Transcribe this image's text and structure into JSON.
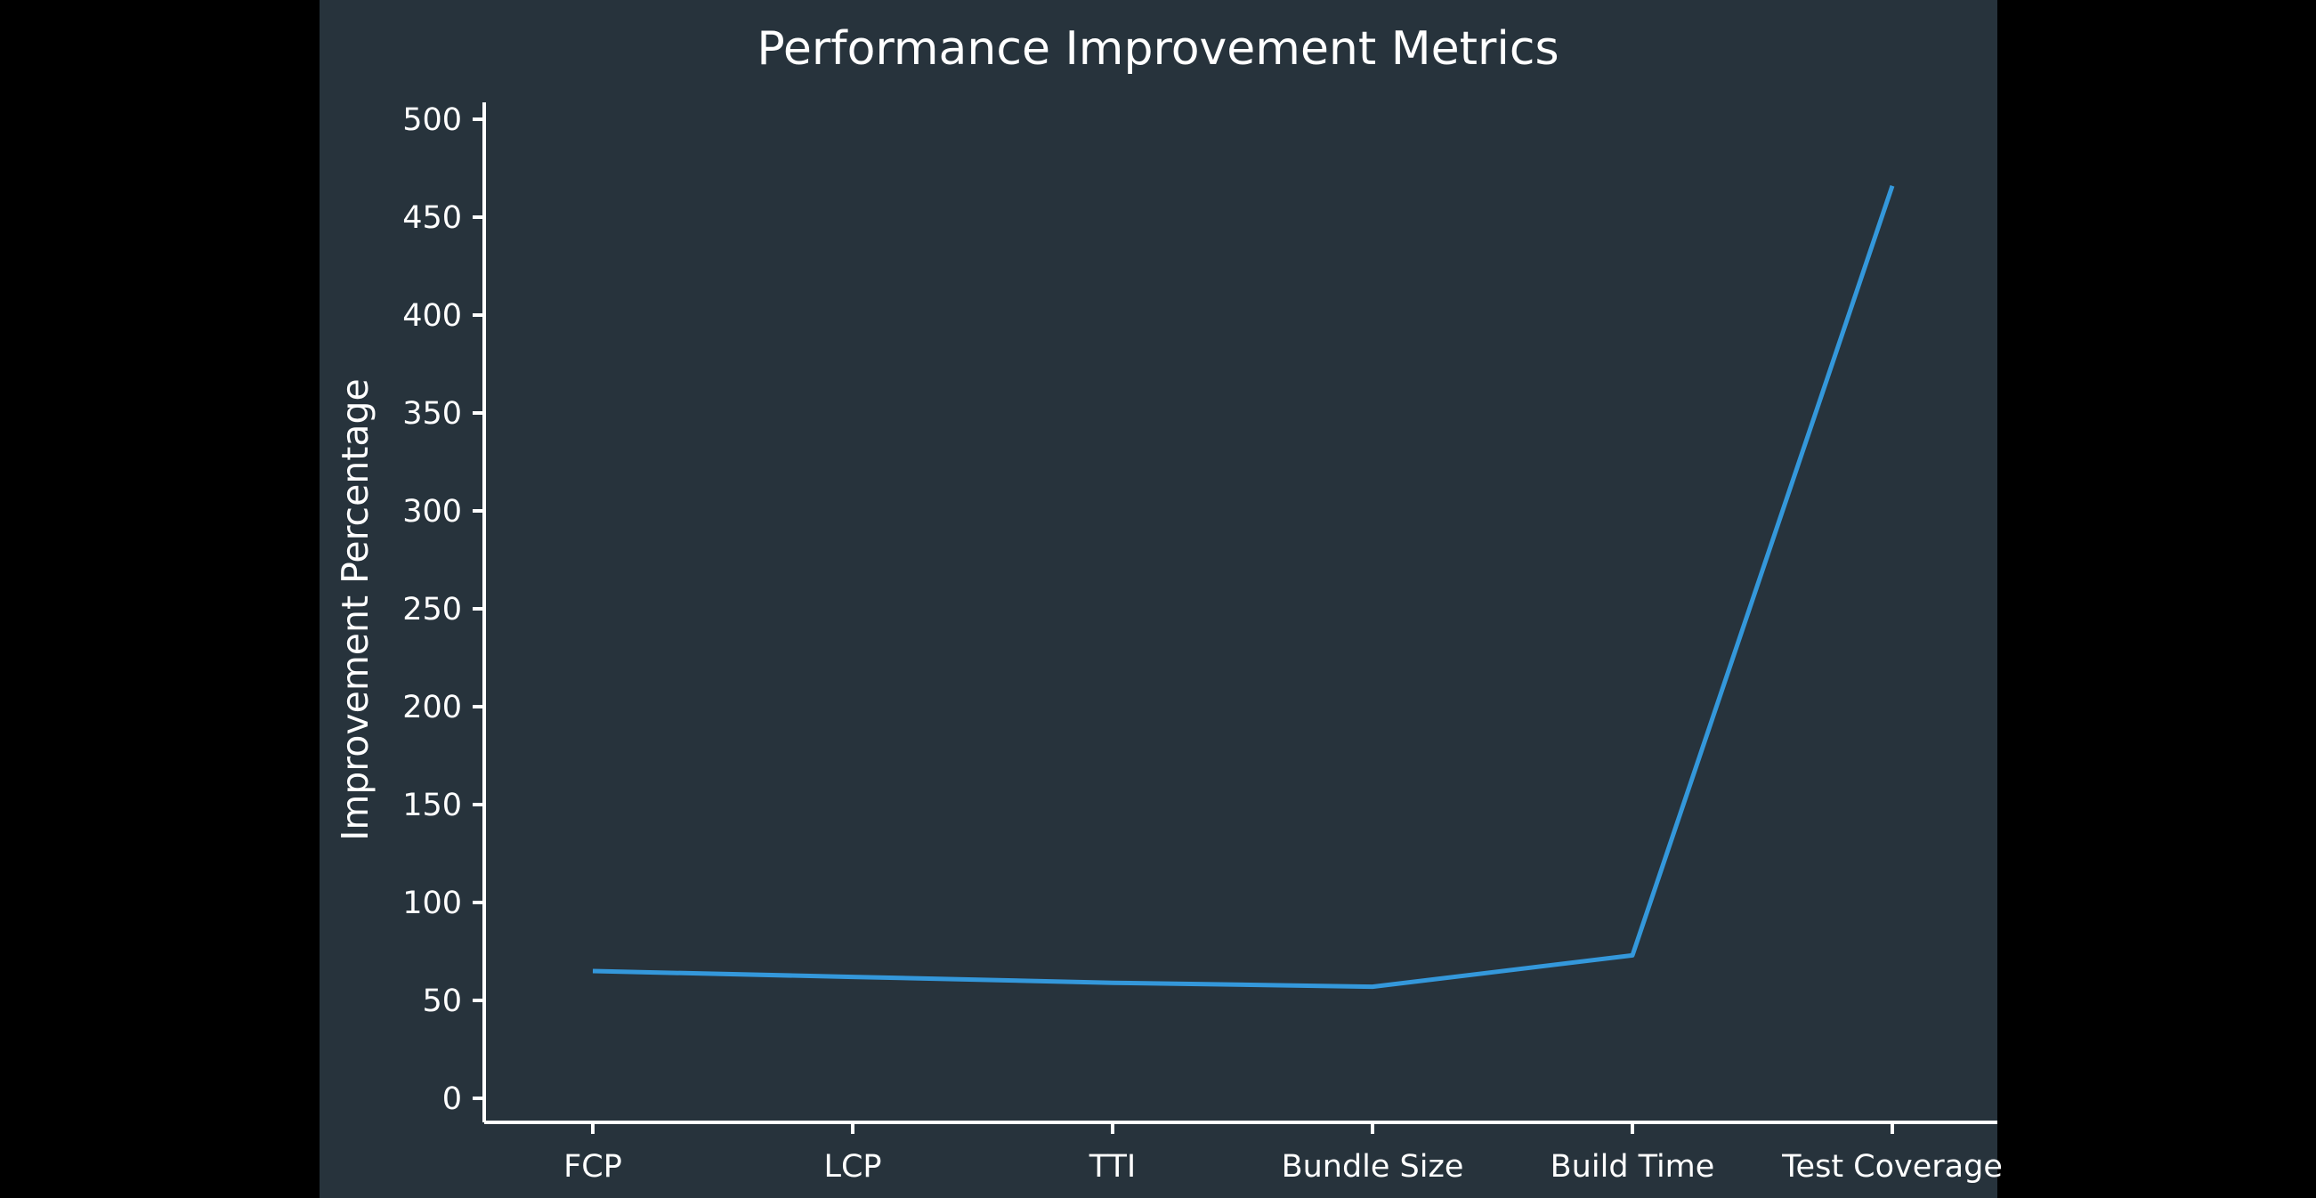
{
  "chart_data": {
    "type": "line",
    "title": "Performance Improvement Metrics",
    "xlabel": "",
    "ylabel": "Improvement Percentage",
    "categories": [
      "FCP",
      "LCP",
      "TTI",
      "Bundle Size",
      "Build Time",
      "Test Coverage"
    ],
    "series": [
      {
        "values": [
          65,
          62,
          59,
          57,
          73,
          466
        ],
        "color": "#3498db"
      }
    ],
    "ylim": [
      0,
      500
    ],
    "yticks": [
      0,
      50,
      100,
      150,
      200,
      250,
      300,
      350,
      400,
      450,
      500
    ],
    "grid": false,
    "legend": "none",
    "colors": {
      "background": "#27333c",
      "outer_background": "#000000",
      "axis": "#ffffff",
      "text": "#ffffff"
    }
  }
}
